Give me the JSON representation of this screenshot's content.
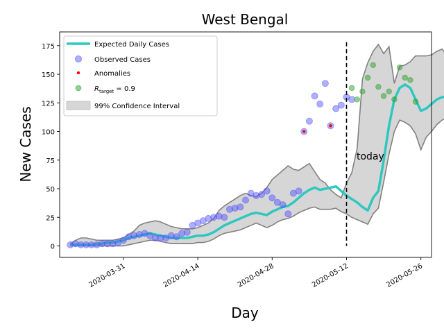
{
  "chart_data": {
    "type": "line",
    "title": "West Bengal",
    "xlabel": "Day",
    "ylabel": "New Cases",
    "x_start": "2020-03-21",
    "x_ticks": [
      "2020-03-31",
      "2020-04-14",
      "2020-04-28",
      "2020-05-12",
      "2020-05-26"
    ],
    "y_ticks": [
      0,
      25,
      50,
      75,
      100,
      125,
      150,
      175
    ],
    "xlim": [
      "2020-03-19",
      "2020-05-28"
    ],
    "ylim": [
      -10,
      187
    ],
    "grid": false,
    "legend_position": "top-left",
    "legend": {
      "expected": "Expected Daily Cases",
      "observed": "Observed Cases",
      "anomalies": "Anomalies",
      "target_prefix": "R",
      "target_sub": "target",
      "target_suffix": " = 0.9",
      "ci": "99% Confidence Interval"
    },
    "annotation": {
      "text": "today",
      "date": "2020-05-12"
    },
    "colors": {
      "expected": "#2ec7c0",
      "observed": "#4d4dff",
      "anomalies": "#ff0000",
      "projection": "#2ca02c",
      "ci_fill": "#d6d6d6",
      "ci_edge": "#808080"
    },
    "series": [
      {
        "name": "Expected Daily Cases",
        "values": [
          1,
          1,
          1,
          1,
          1,
          2,
          2,
          3,
          3,
          4,
          5,
          7,
          8,
          9,
          10,
          11,
          10,
          9,
          8,
          7,
          7,
          7,
          7,
          8,
          9,
          9,
          10,
          12,
          15,
          18,
          20,
          22,
          24,
          26,
          28,
          29,
          28,
          27,
          30,
          32,
          34,
          35,
          38,
          42,
          46,
          49,
          51,
          49,
          50,
          51,
          52,
          48,
          44,
          41,
          38,
          34,
          31,
          42,
          48,
          75,
          105,
          128,
          138,
          141,
          138,
          128,
          118,
          120,
          124,
          128,
          130,
          130
        ]
      },
      {
        "name": "Observed Cases",
        "values": [
          1,
          2,
          1,
          1,
          1,
          1,
          2,
          2,
          2,
          3,
          5,
          8,
          9,
          10,
          11,
          9,
          7,
          7,
          7,
          9,
          8,
          11,
          12,
          18,
          20,
          22,
          24,
          25,
          26,
          25,
          32,
          33,
          34,
          40,
          46,
          44,
          45,
          48,
          42,
          38,
          36,
          28,
          46,
          48,
          100,
          109,
          131,
          124,
          142,
          105,
          120,
          123,
          130,
          128
        ]
      },
      {
        "name": "Anomalies",
        "points": [
          {
            "x": "2020-05-04",
            "y": 100
          },
          {
            "x": "2020-05-09",
            "y": 105
          }
        ]
      },
      {
        "name": "R_target = 0.9",
        "x_start": "2020-05-13",
        "values": [
          138,
          128,
          135,
          147,
          158,
          139,
          131,
          135,
          128,
          156,
          147,
          145,
          126
        ]
      },
      {
        "name": "99% Confidence Interval",
        "upper": [
          2,
          5,
          7,
          7,
          6,
          5,
          5,
          5,
          5,
          6,
          7,
          10,
          13,
          18,
          20,
          21,
          22,
          21,
          19,
          17,
          16,
          15,
          15,
          15,
          16,
          18,
          20,
          24,
          31,
          35,
          38,
          41,
          44,
          46,
          44,
          43,
          46,
          51,
          58,
          62,
          66,
          70,
          67,
          66,
          69,
          72,
          65,
          58,
          55,
          49,
          45,
          42,
          55,
          64,
          85,
          146,
          160,
          170,
          176,
          168,
          174,
          142,
          157,
          158,
          161,
          166,
          166,
          166,
          167,
          170,
          172,
          166,
          168,
          176,
          188,
          174,
          160,
          150,
          140,
          160,
          180,
          178,
          174,
          170
        ],
        "lower": [
          0,
          0,
          0,
          0,
          0,
          0,
          0,
          0,
          0,
          0,
          0,
          1,
          2,
          3,
          4,
          5,
          5,
          4,
          3,
          2,
          2,
          2,
          2,
          2,
          3,
          3,
          4,
          6,
          9,
          11,
          12,
          13,
          14,
          16,
          18,
          20,
          18,
          16,
          18,
          21,
          23,
          24,
          26,
          29,
          31,
          33,
          34,
          32,
          32,
          32,
          33,
          30,
          28,
          25,
          23,
          21,
          19,
          28,
          33,
          56,
          80,
          100,
          110,
          108,
          105,
          98,
          84,
          95,
          100,
          106,
          110,
          112,
          110,
          108,
          107,
          110,
          115,
          117,
          119,
          118,
          117,
          116,
          115,
          114
        ]
      }
    ]
  }
}
